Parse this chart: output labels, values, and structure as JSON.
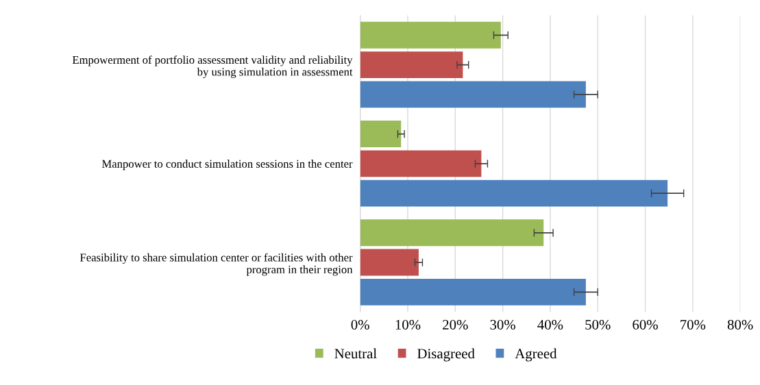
{
  "chart_data": {
    "type": "bar",
    "orientation": "horizontal",
    "categories": [
      "Empowerment of portfolio assessment validity and reliability\nby using simulation in assessment",
      "Manpower to conduct simulation sessions in the center",
      "Feasibility to share simulation center or facilities with other\nprogram in their region"
    ],
    "series": [
      {
        "name": "Neutral",
        "color": "#9bbb59",
        "values": [
          29.6,
          8.6,
          38.6
        ],
        "errors": [
          1.5,
          0.7,
          2
        ]
      },
      {
        "name": "Disagreed",
        "color": "#c0504d",
        "values": [
          21.6,
          25.5,
          12.3
        ],
        "errors": [
          1.2,
          1.3,
          0.8
        ]
      },
      {
        "name": "Agreed",
        "color": "#4f81bd",
        "values": [
          47.5,
          64.7,
          47.5
        ],
        "errors": [
          2.5,
          3.4,
          2.5
        ]
      }
    ],
    "xlim": [
      0,
      80
    ],
    "xticks": [
      {
        "value": 0,
        "label": "0%"
      },
      {
        "value": 10,
        "label": "10%"
      },
      {
        "value": 20,
        "label": "20%"
      },
      {
        "value": 30,
        "label": "30%"
      },
      {
        "value": 40,
        "label": "40%"
      },
      {
        "value": 50,
        "label": "50%"
      },
      {
        "value": 60,
        "label": "60%"
      },
      {
        "value": 70,
        "label": "70%"
      },
      {
        "value": 80,
        "label": "80%"
      }
    ],
    "grid": "x",
    "legend": "bottom"
  }
}
